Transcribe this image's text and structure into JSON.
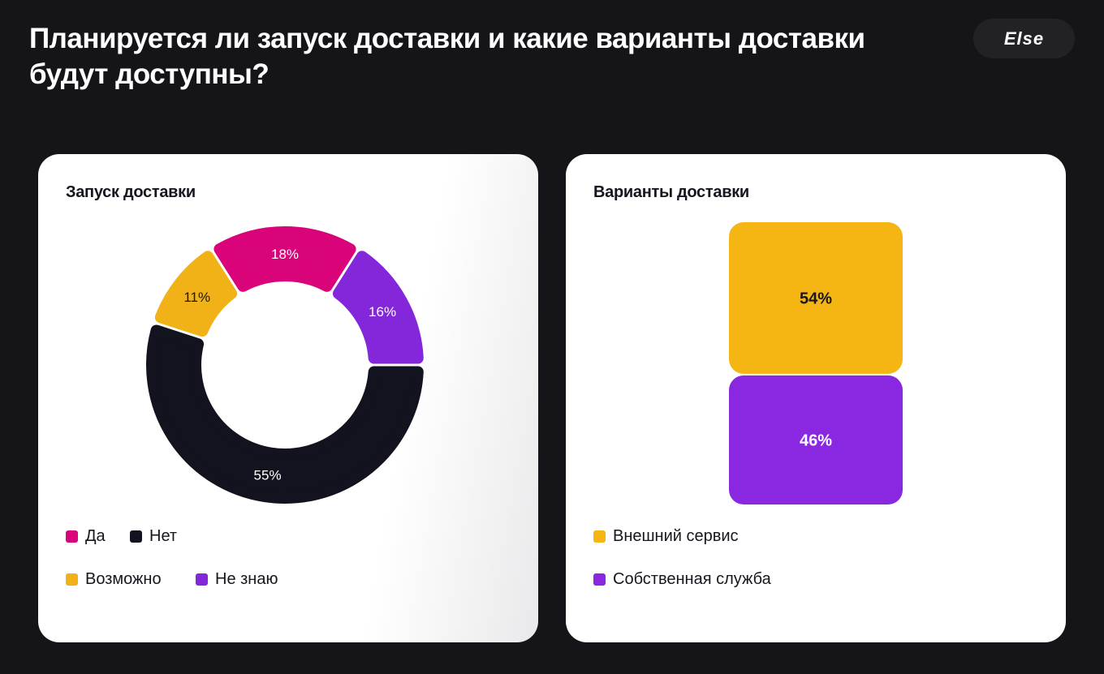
{
  "title": "Планируется ли запуск доставки и какие варианты доставки будут доступны?",
  "logo": "Else",
  "chart_data": [
    {
      "type": "pie",
      "donut": true,
      "title": "Запуск доставки",
      "slices": [
        {
          "label": "Нет",
          "value": 55,
          "display": "55%",
          "color": "#13121f",
          "text_color": "#ffffff"
        },
        {
          "label": "Возможно",
          "value": 11,
          "display": "11%",
          "color": "#f0b216",
          "text_color": "#16161e"
        },
        {
          "label": "Да",
          "value": 18,
          "display": "18%",
          "color": "#d9037a",
          "text_color": "#ffffff"
        },
        {
          "label": "Не знаю",
          "value": 16,
          "display": "16%",
          "color": "#8426d9",
          "text_color": "#ffffff"
        }
      ],
      "legend": [
        {
          "label": "Да",
          "color": "#d9037a"
        },
        {
          "label": "Нет",
          "color": "#13121f"
        },
        {
          "label": "Возможно",
          "color": "#f0b216"
        },
        {
          "label": "Не знаю",
          "color": "#8426d9"
        }
      ],
      "legend_position": "bottom-left"
    },
    {
      "type": "bar",
      "stacked": true,
      "title": "Варианты доставки",
      "series": [
        {
          "name": "Внешний сервис",
          "value": 54,
          "display": "54%",
          "color": "#f5b614",
          "text_color": "#16161e"
        },
        {
          "name": "Собственная служба",
          "value": 46,
          "display": "46%",
          "color": "#8a27e0",
          "text_color": "#ffffff"
        }
      ],
      "legend_position": "bottom-left"
    }
  ]
}
